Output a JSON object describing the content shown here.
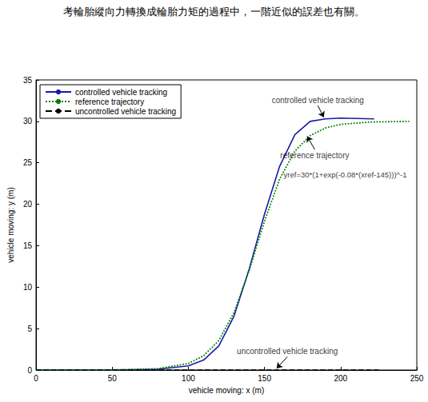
{
  "chart_data": {
    "type": "line",
    "caption": "考輪胎縱向力轉換成輪胎力矩的過程中，一階近似的誤差也有關。",
    "xlabel": "vehicle moving: x (m)",
    "ylabel": "vehicle moving: y (m)",
    "xlim": [
      0,
      250
    ],
    "xticks": [
      0,
      50,
      100,
      150,
      200,
      250
    ],
    "ylim": [
      0,
      35
    ],
    "yticks": [
      0,
      5,
      10,
      15,
      20,
      25,
      30,
      35
    ],
    "grid": false,
    "legend": "upper left",
    "series": [
      {
        "name": "controlled vehicle tracking",
        "color": "#1a1aa8",
        "line_style": "solid",
        "x": [
          0,
          50,
          80,
          100,
          110,
          120,
          130,
          140,
          150,
          160,
          170,
          180,
          190,
          200,
          222
        ],
        "values": [
          0,
          0,
          0.1,
          0.5,
          1.2,
          2.9,
          6.5,
          12.2,
          18.8,
          24.6,
          28.4,
          30.0,
          30.3,
          30.4,
          30.3
        ]
      },
      {
        "name": "reference trajectory",
        "color": "#008000",
        "line_style": "dotted",
        "x": [
          0,
          50,
          80,
          100,
          110,
          120,
          130,
          140,
          145,
          150,
          160,
          170,
          180,
          190,
          200,
          220,
          245
        ],
        "values": [
          0,
          0.02,
          0.16,
          0.8,
          1.72,
          3.56,
          6.94,
          12.05,
          15,
          17.95,
          23.06,
          26.43,
          28.28,
          29.2,
          29.64,
          29.93,
          30
        ]
      },
      {
        "name": "uncontrolled vehicle tracking",
        "color": "#000000",
        "line_style": "dashed",
        "x": [
          0,
          225
        ],
        "values": [
          0,
          0
        ]
      }
    ],
    "annotations": [
      {
        "text": "controlled vehicle tracking",
        "xy": [
          189,
          30.5
        ],
        "xytext": [
          185,
          31.9
        ]
      },
      {
        "text": "reference trajectory",
        "xy": [
          178,
          28.2
        ],
        "xytext": [
          183,
          26.6
        ]
      },
      {
        "text": "yref=30*(1+exp(-0.08*(xref-145)))^-1",
        "xytext": [
          203,
          23.6
        ]
      },
      {
        "text": "uncontrolled vehicle tracking",
        "xy": [
          158,
          0.2
        ],
        "xytext": [
          165,
          1.6
        ]
      }
    ]
  }
}
